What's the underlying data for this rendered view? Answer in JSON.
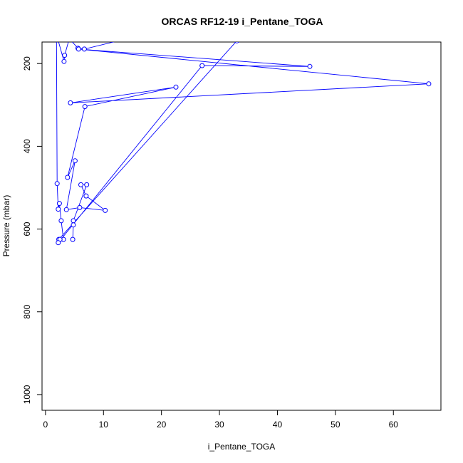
{
  "chart_data": {
    "type": "line",
    "title": "ORCAS RF12-19 i_Pentane_TOGA",
    "xlabel": "i_Pentane_TOGA",
    "ylabel": "Pressure (mbar)",
    "xlim": [
      -0.6,
      68.2
    ],
    "ylim": [
      1038,
      148
    ],
    "y_reversed": true,
    "grid": false,
    "legend": "none",
    "x_ticks": [
      0,
      10,
      20,
      30,
      40,
      50,
      60
    ],
    "y_ticks": [
      200,
      400,
      600,
      800,
      1000
    ],
    "series": [
      {
        "marker": "open-circle",
        "line": true,
        "color": "#0000ff",
        "points": [
          [
            2.3,
            625
          ],
          [
            33.0,
            145
          ],
          [
            14.0,
            140
          ],
          [
            6.7,
            165
          ],
          [
            5.6,
            163
          ],
          [
            4.1,
            140
          ],
          [
            3.3,
            180
          ],
          [
            3.2,
            195
          ],
          [
            2.1,
            140
          ],
          [
            1.9,
            140
          ],
          [
            2.0,
            490
          ],
          [
            2.2,
            552
          ],
          [
            2.4,
            538
          ],
          [
            2.7,
            580
          ],
          [
            3.1,
            625
          ],
          [
            2.5,
            625
          ],
          [
            2.2,
            633
          ],
          [
            27.0,
            205
          ],
          [
            45.6,
            207
          ],
          [
            5.7,
            165
          ],
          [
            66.1,
            249
          ],
          [
            4.3,
            295
          ],
          [
            22.5,
            257
          ],
          [
            6.8,
            304
          ],
          [
            3.8,
            475
          ],
          [
            5.1,
            435
          ],
          [
            3.6,
            553
          ],
          [
            5.9,
            548
          ],
          [
            10.3,
            555
          ],
          [
            7.0,
            520
          ],
          [
            6.1,
            493
          ],
          [
            7.1,
            493
          ],
          [
            4.8,
            580
          ],
          [
            4.8,
            590
          ],
          [
            4.7,
            625
          ]
        ]
      }
    ]
  }
}
